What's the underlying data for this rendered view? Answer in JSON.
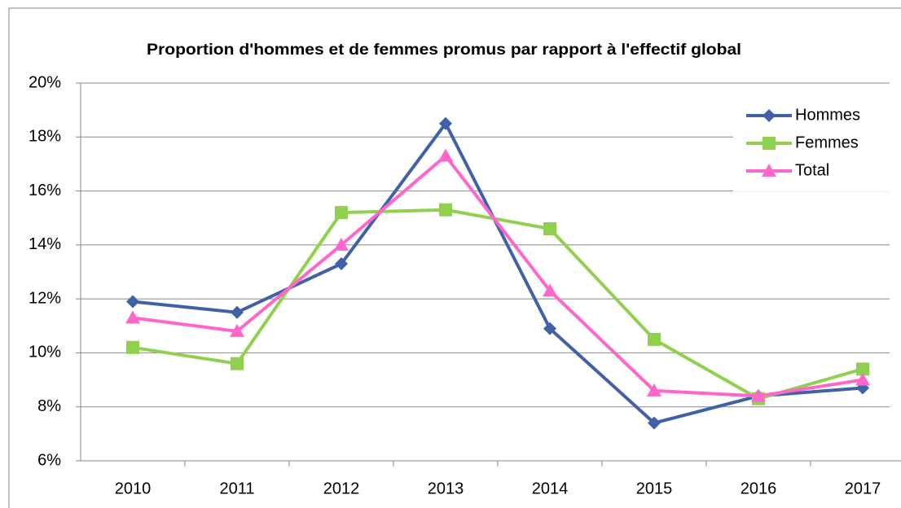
{
  "chart_data": {
    "type": "line",
    "title": "Proportion d'hommes et de femmes promus par rapport à l'effectif global",
    "categories": [
      "2010",
      "2011",
      "2012",
      "2013",
      "2014",
      "2015",
      "2016",
      "2017"
    ],
    "series": [
      {
        "name": "Hommes",
        "color": "#4061a8",
        "marker": "diamond",
        "values": [
          11.9,
          11.5,
          13.3,
          18.5,
          10.9,
          7.4,
          8.4,
          8.7
        ]
      },
      {
        "name": "Femmes",
        "color": "#8fd14f",
        "marker": "square",
        "values": [
          10.2,
          9.6,
          15.2,
          15.3,
          14.6,
          10.5,
          8.3,
          9.4
        ]
      },
      {
        "name": "Total",
        "color": "#ff66cc",
        "marker": "triangle",
        "values": [
          11.3,
          10.8,
          14.0,
          17.3,
          12.3,
          8.6,
          8.4,
          9.0
        ]
      }
    ],
    "ylim": [
      6,
      20
    ],
    "yticks": [
      {
        "value": 6,
        "label": "6%"
      },
      {
        "value": 8,
        "label": "8%"
      },
      {
        "value": 10,
        "label": "10%"
      },
      {
        "value": 12,
        "label": "12%"
      },
      {
        "value": 14,
        "label": "14%"
      },
      {
        "value": 16,
        "label": "16%"
      },
      {
        "value": 18,
        "label": "18%"
      },
      {
        "value": 20,
        "label": "20%"
      }
    ],
    "grid": true,
    "legend": "top-right"
  }
}
